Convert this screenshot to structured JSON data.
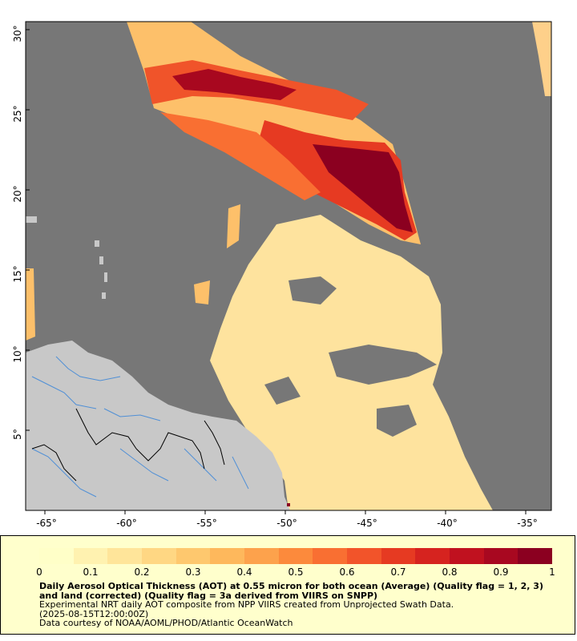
{
  "map": {
    "lon_ticks": [
      "-65°",
      "-60°",
      "-55°",
      "-50°",
      "-45°",
      "-40°",
      "-35°"
    ],
    "lat_ticks": [
      "30°",
      "25°",
      "20°",
      "15°",
      "10°",
      "5°"
    ],
    "colors": {
      "ocean_nodata": "#777777",
      "land": "#c8c8c8",
      "rivers": "#4f8fd6",
      "borders": "#000000"
    }
  },
  "legend": {
    "colorbar_ticks": [
      "0",
      "0.1",
      "0.2",
      "0.3",
      "0.4",
      "0.5",
      "0.6",
      "0.7",
      "0.8",
      "0.9",
      "1"
    ],
    "colorbar_range": [
      0,
      1
    ],
    "colorbar_colors": [
      "#ffffc8",
      "#fff2b0",
      "#ffe59a",
      "#ffd783",
      "#fec86e",
      "#feb85c",
      "#fda24c",
      "#fc8a3c",
      "#f96f32",
      "#f2542a",
      "#e63a22",
      "#d6231f",
      "#c0111f",
      "#a80820",
      "#8b0020"
    ],
    "title": "Daily Aerosol Optical Thickness (AOT) at 0.55 micron for both ocean (Average) (Quality flag = 1, 2, 3) and land (corrected) (Quality flag = 3a derived from VIIRS on SNPP)",
    "description": "Experimental NRT daily AOT composite from NPP VIIRS created from Unprojected Swath Data.",
    "timestamp": "(2025-08-15T12:00:00Z)",
    "credit": "Data courtesy of NOAA/AOML/PHOD/Atlantic OceanWatch"
  }
}
